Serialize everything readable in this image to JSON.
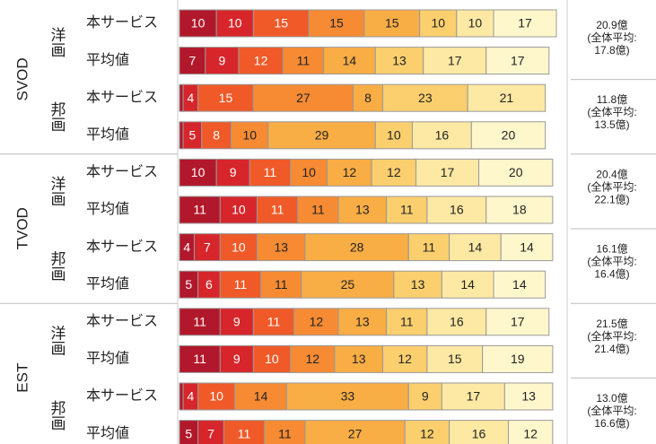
{
  "chart_data": {
    "type": "bar",
    "orientation": "horizontal",
    "stacked": true,
    "xlim": [
      0,
      102
    ],
    "colors": [
      "#b2182b",
      "#d7262b",
      "#ef5a28",
      "#f68b33",
      "#f9ad45",
      "#fbcf6e",
      "#fde9a3",
      "#fff7cc"
    ],
    "groups": [
      {
        "name": "SVOD",
        "subgroups": [
          {
            "name": "洋画",
            "note": [
              "20.9億",
              "(全体平均:",
              "17.8億)"
            ],
            "rows": [
              {
                "name": "本サービス",
                "values": [
                  10,
                  10,
                  15,
                  15,
                  15,
                  10,
                  10,
                  17
                ]
              },
              {
                "name": "平均値",
                "values": [
                  7,
                  9,
                  12,
                  11,
                  14,
                  13,
                  17,
                  17
                ]
              }
            ]
          },
          {
            "name": "邦画",
            "note": [
              "11.8億",
              "(全体平均:",
              "13.5億)"
            ],
            "rows": [
              {
                "name": "本サービス",
                "values": [
                  1,
                  4,
                  15,
                  27,
                  8,
                  23,
                  21,
                  0
                ]
              },
              {
                "name": "平均値",
                "values": [
                  1,
                  5,
                  8,
                  10,
                  29,
                  10,
                  16,
                  20
                ]
              }
            ]
          }
        ]
      },
      {
        "name": "TVOD",
        "subgroups": [
          {
            "name": "洋画",
            "note": [
              "20.4億",
              "(全体平均:",
              "22.1億)"
            ],
            "rows": [
              {
                "name": "本サービス",
                "values": [
                  10,
                  9,
                  11,
                  10,
                  12,
                  12,
                  17,
                  20
                ]
              },
              {
                "name": "平均値",
                "values": [
                  11,
                  10,
                  11,
                  11,
                  13,
                  11,
                  16,
                  18
                ]
              }
            ]
          },
          {
            "name": "邦画",
            "note": [
              "16.1億",
              "(全体平均:",
              "16.4億)"
            ],
            "rows": [
              {
                "name": "本サービス",
                "values": [
                  4,
                  7,
                  10,
                  13,
                  28,
                  11,
                  14,
                  14
                ]
              },
              {
                "name": "平均値",
                "values": [
                  5,
                  6,
                  11,
                  11,
                  25,
                  13,
                  14,
                  14
                ]
              }
            ]
          }
        ]
      },
      {
        "name": "EST",
        "subgroups": [
          {
            "name": "洋画",
            "note": [
              "21.5億",
              "(全体平均:",
              "21.4億)"
            ],
            "rows": [
              {
                "name": "本サービス",
                "values": [
                  11,
                  9,
                  11,
                  12,
                  13,
                  11,
                  16,
                  17
                ]
              },
              {
                "name": "平均値",
                "values": [
                  11,
                  9,
                  10,
                  12,
                  13,
                  12,
                  15,
                  19
                ]
              }
            ]
          },
          {
            "name": "邦画",
            "note": [
              "13.0億",
              "(全体平均:",
              "16.6億)"
            ],
            "rows": [
              {
                "name": "本サービス",
                "values": [
                  1,
                  4,
                  10,
                  14,
                  33,
                  9,
                  17,
                  13
                ]
              },
              {
                "name": "平均値",
                "values": [
                  5,
                  7,
                  11,
                  11,
                  27,
                  12,
                  16,
                  12
                ]
              }
            ]
          }
        ]
      }
    ]
  }
}
